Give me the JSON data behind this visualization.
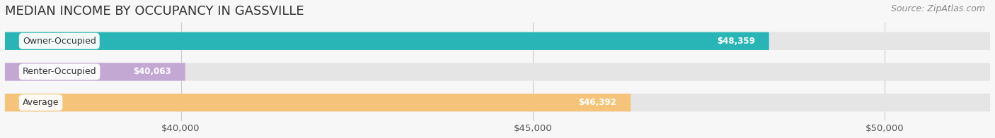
{
  "title": "MEDIAN INCOME BY OCCUPANCY IN GASSVILLE",
  "source": "Source: ZipAtlas.com",
  "categories": [
    "Owner-Occupied",
    "Renter-Occupied",
    "Average"
  ],
  "values": [
    48359,
    40063,
    46392
  ],
  "bar_colors": [
    "#29b5b5",
    "#c4a8d4",
    "#f5c47a"
  ],
  "bar_label_bg_colors": [
    "#29a0a8",
    "#c4a8d4",
    "#f5c47a"
  ],
  "bar_labels": [
    "$48,359",
    "$40,063",
    "$46,392"
  ],
  "xmin": 37500,
  "xmax": 51500,
  "xticks": [
    40000,
    45000,
    50000
  ],
  "xtick_labels": [
    "$40,000",
    "$45,000",
    "$50,000"
  ],
  "bg_color": "#f7f7f7",
  "bar_bg_color": "#e5e5e5",
  "title_fontsize": 13,
  "source_fontsize": 9,
  "tick_fontsize": 9.5,
  "bar_label_fontsize": 8.5,
  "category_fontsize": 9
}
